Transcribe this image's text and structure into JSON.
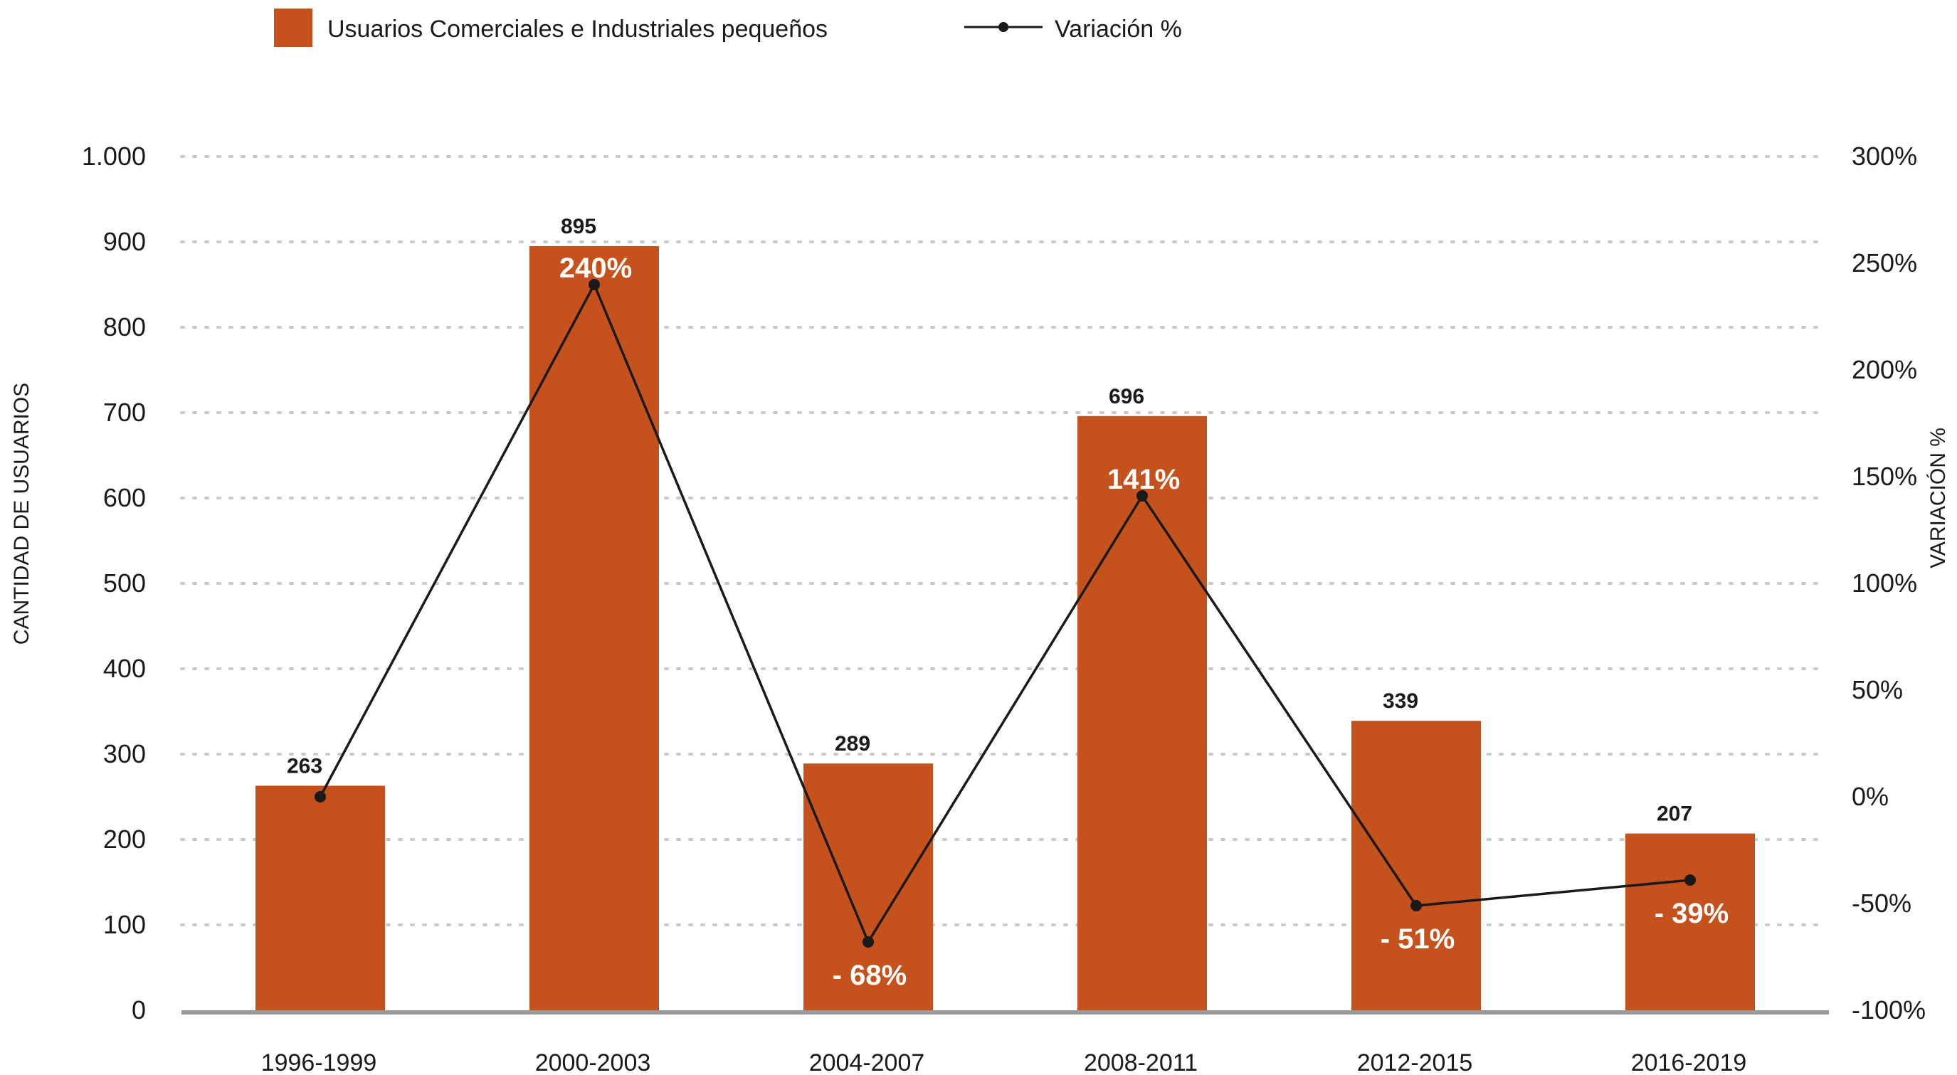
{
  "chart_data": {
    "type": "bar",
    "categories": [
      "1996-1999",
      "2000-2003",
      "2004-2007",
      "2008-2011",
      "2012-2015",
      "2016-2019"
    ],
    "series": [
      {
        "name": "Usuarios Comerciales e Industriales pequeños",
        "type": "bar",
        "axis": "left",
        "color": "#c5511c",
        "values": [
          263,
          895,
          289,
          696,
          339,
          207
        ],
        "labels": [
          "263",
          "895",
          "289",
          "696",
          "339",
          "207"
        ]
      },
      {
        "name": "Variación %",
        "type": "line",
        "axis": "right",
        "color": "#1a1a1a",
        "values": [
          0,
          240,
          -68,
          141,
          -51,
          -39
        ],
        "labels": [
          "",
          "240%",
          "- 68%",
          "141%",
          "- 51%",
          "- 39%"
        ]
      }
    ],
    "ylabel": "CANTIDAD DE USUARIOS",
    "ylabel_right": "VARIACIÓN %",
    "ylim": [
      0,
      1000
    ],
    "ylim_right": [
      -100,
      300
    ],
    "yticks": [
      0,
      100,
      200,
      300,
      400,
      500,
      600,
      700,
      800,
      900,
      1000
    ],
    "ytick_labels": [
      "0",
      "100",
      "200",
      "300",
      "400",
      "500",
      "600",
      "700",
      "800",
      "900",
      "1.000"
    ],
    "yticks_right": [
      -100,
      -50,
      0,
      50,
      100,
      150,
      200,
      250,
      300
    ],
    "ytick_labels_right": [
      "-100%",
      "-50%",
      "0%",
      "50%",
      "100%",
      "150%",
      "200%",
      "250%",
      "300%"
    ],
    "grid": "horizontal dotted",
    "legend": "top-left"
  }
}
